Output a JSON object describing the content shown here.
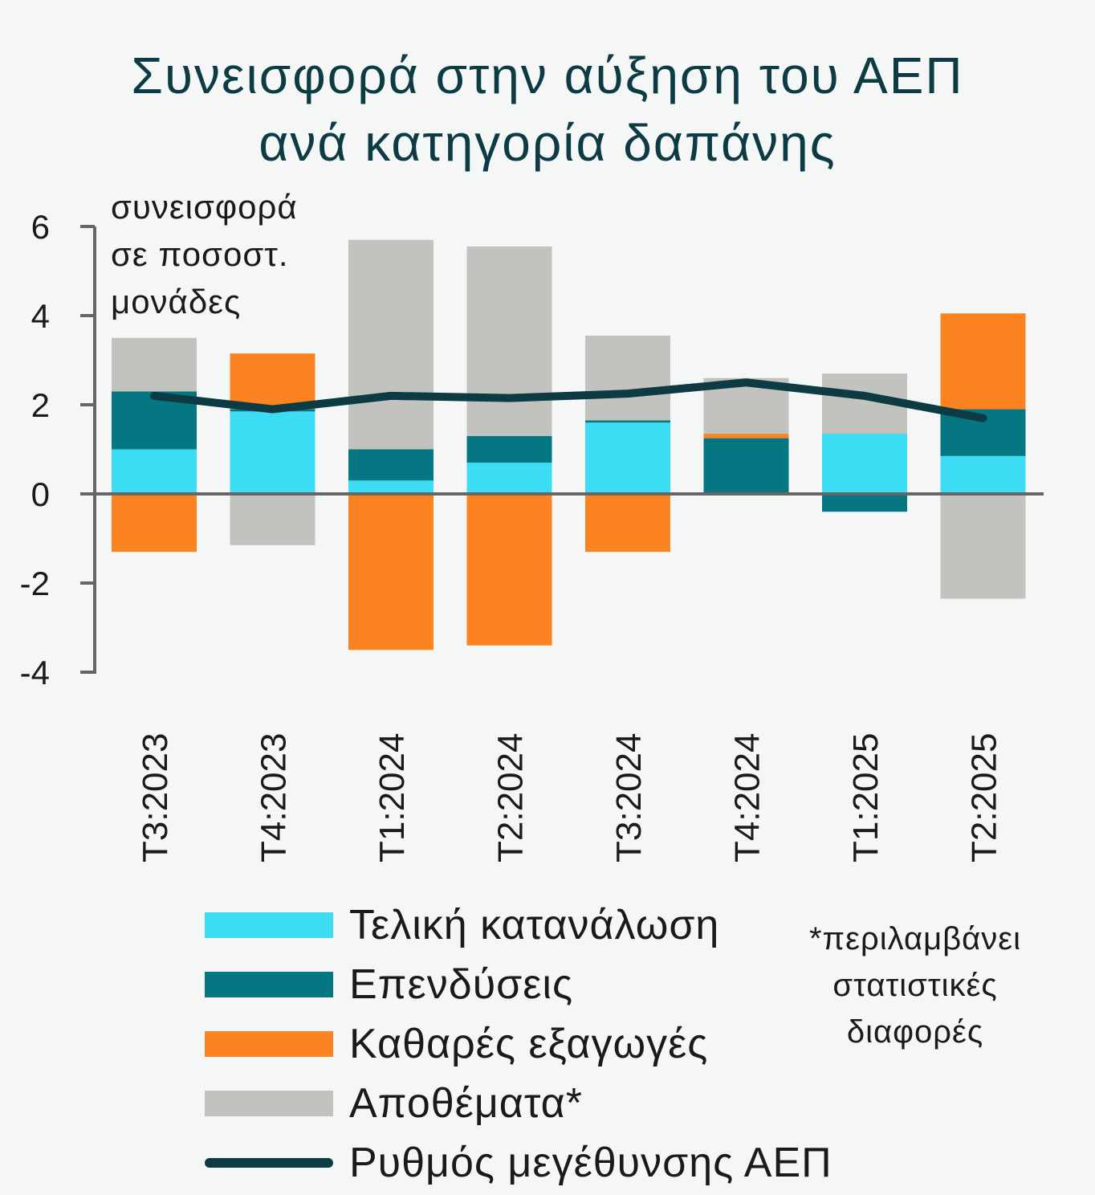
{
  "chart_data": {
    "type": "bar",
    "stacked": true,
    "title": [
      "Συνεισφορά στην αύξηση του ΑΕΠ",
      "ανά κατηγορία δαπάνης"
    ],
    "ylabel": [
      "συνεισφορά",
      "σε ποσοστ.",
      "μονάδες"
    ],
    "ylim": [
      -4,
      6
    ],
    "yticks": [
      "6",
      "4",
      "2",
      "0",
      "-2",
      "-4"
    ],
    "categories": [
      "T3:2023",
      "T4:2023",
      "T1:2024",
      "T2:2024",
      "T3:2024",
      "T4:2024",
      "T1:2025",
      "T2:2025"
    ],
    "series": [
      {
        "name": "Τελική κατανάλωση",
        "color": "#3cdcf5",
        "values": [
          1.0,
          1.85,
          0.3,
          0.7,
          1.6,
          0.0,
          1.35,
          0.85
        ]
      },
      {
        "name": "Επενδύσεις",
        "color": "#057782",
        "values": [
          1.3,
          0.05,
          0.7,
          0.6,
          0.05,
          1.25,
          -0.4,
          1.05
        ]
      },
      {
        "name": "Καθαρές εξαγωγές",
        "color": "#fb8321",
        "values": [
          -1.3,
          1.25,
          -3.5,
          -3.4,
          -1.3,
          0.1,
          0.0,
          2.15
        ]
      },
      {
        "name": "Αποθέματα*",
        "color": "#c2c3bf",
        "values": [
          1.2,
          -1.15,
          4.7,
          4.25,
          1.9,
          1.25,
          1.35,
          -2.35
        ]
      }
    ],
    "line": {
      "name": "Ρυθμός μεγέθυνσης ΑΕΠ",
      "color": "#0d3b44",
      "values": [
        2.2,
        1.9,
        2.2,
        2.15,
        2.25,
        2.5,
        2.2,
        1.7
      ]
    },
    "note": [
      "*περιλαμβάνει",
      "στατιστικές",
      "διαφορές"
    ],
    "legend_placement": "bottom",
    "grid": false
  }
}
